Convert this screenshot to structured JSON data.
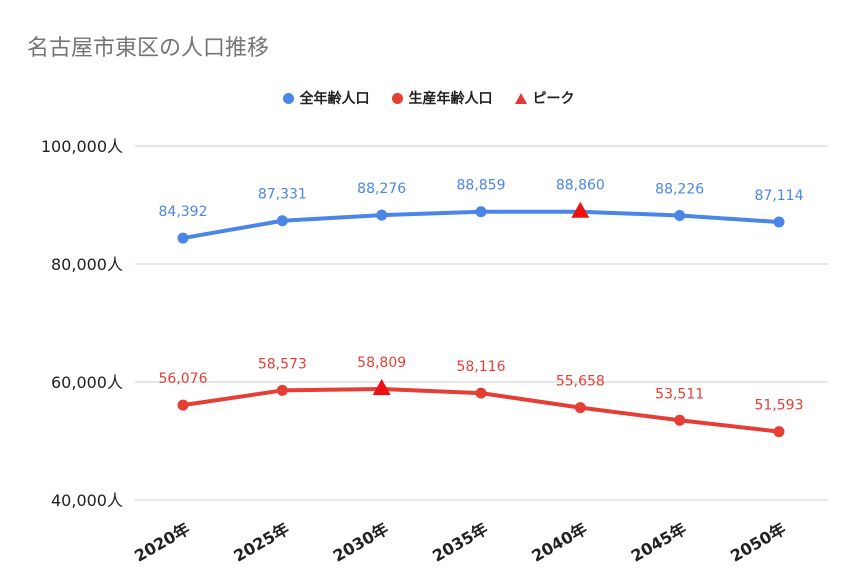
{
  "chart_data": {
    "type": "line",
    "title": "名古屋市東区の人口推移",
    "categories": [
      "2020年",
      "2025年",
      "2030年",
      "2035年",
      "2040年",
      "2045年",
      "2050年"
    ],
    "series": [
      {
        "name": "全年齢人口",
        "color": "#4a86e8",
        "values": [
          84392,
          87331,
          88276,
          88859,
          88860,
          88226,
          87114
        ],
        "labels": [
          "84,392",
          "87,331",
          "88,276",
          "88,859",
          "88,860",
          "88,226",
          "87,114"
        ],
        "peak_index": 4
      },
      {
        "name": "生産年齢人口",
        "color": "#e53e35",
        "values": [
          56076,
          58573,
          58809,
          58116,
          55658,
          53511,
          51593
        ],
        "labels": [
          "56,076",
          "58,573",
          "58,809",
          "58,116",
          "55,658",
          "53,511",
          "51,593"
        ],
        "peak_index": 2
      }
    ],
    "peak_legend": "ピーク",
    "peak_color": "#ee1111",
    "ylim": [
      40000,
      100000
    ],
    "yticks": [
      40000,
      60000,
      80000,
      100000
    ],
    "ytick_labels": [
      "40,000人",
      "60,000人",
      "80,000人",
      "100,000人"
    ],
    "legend_position": "top-center",
    "grid": true
  }
}
